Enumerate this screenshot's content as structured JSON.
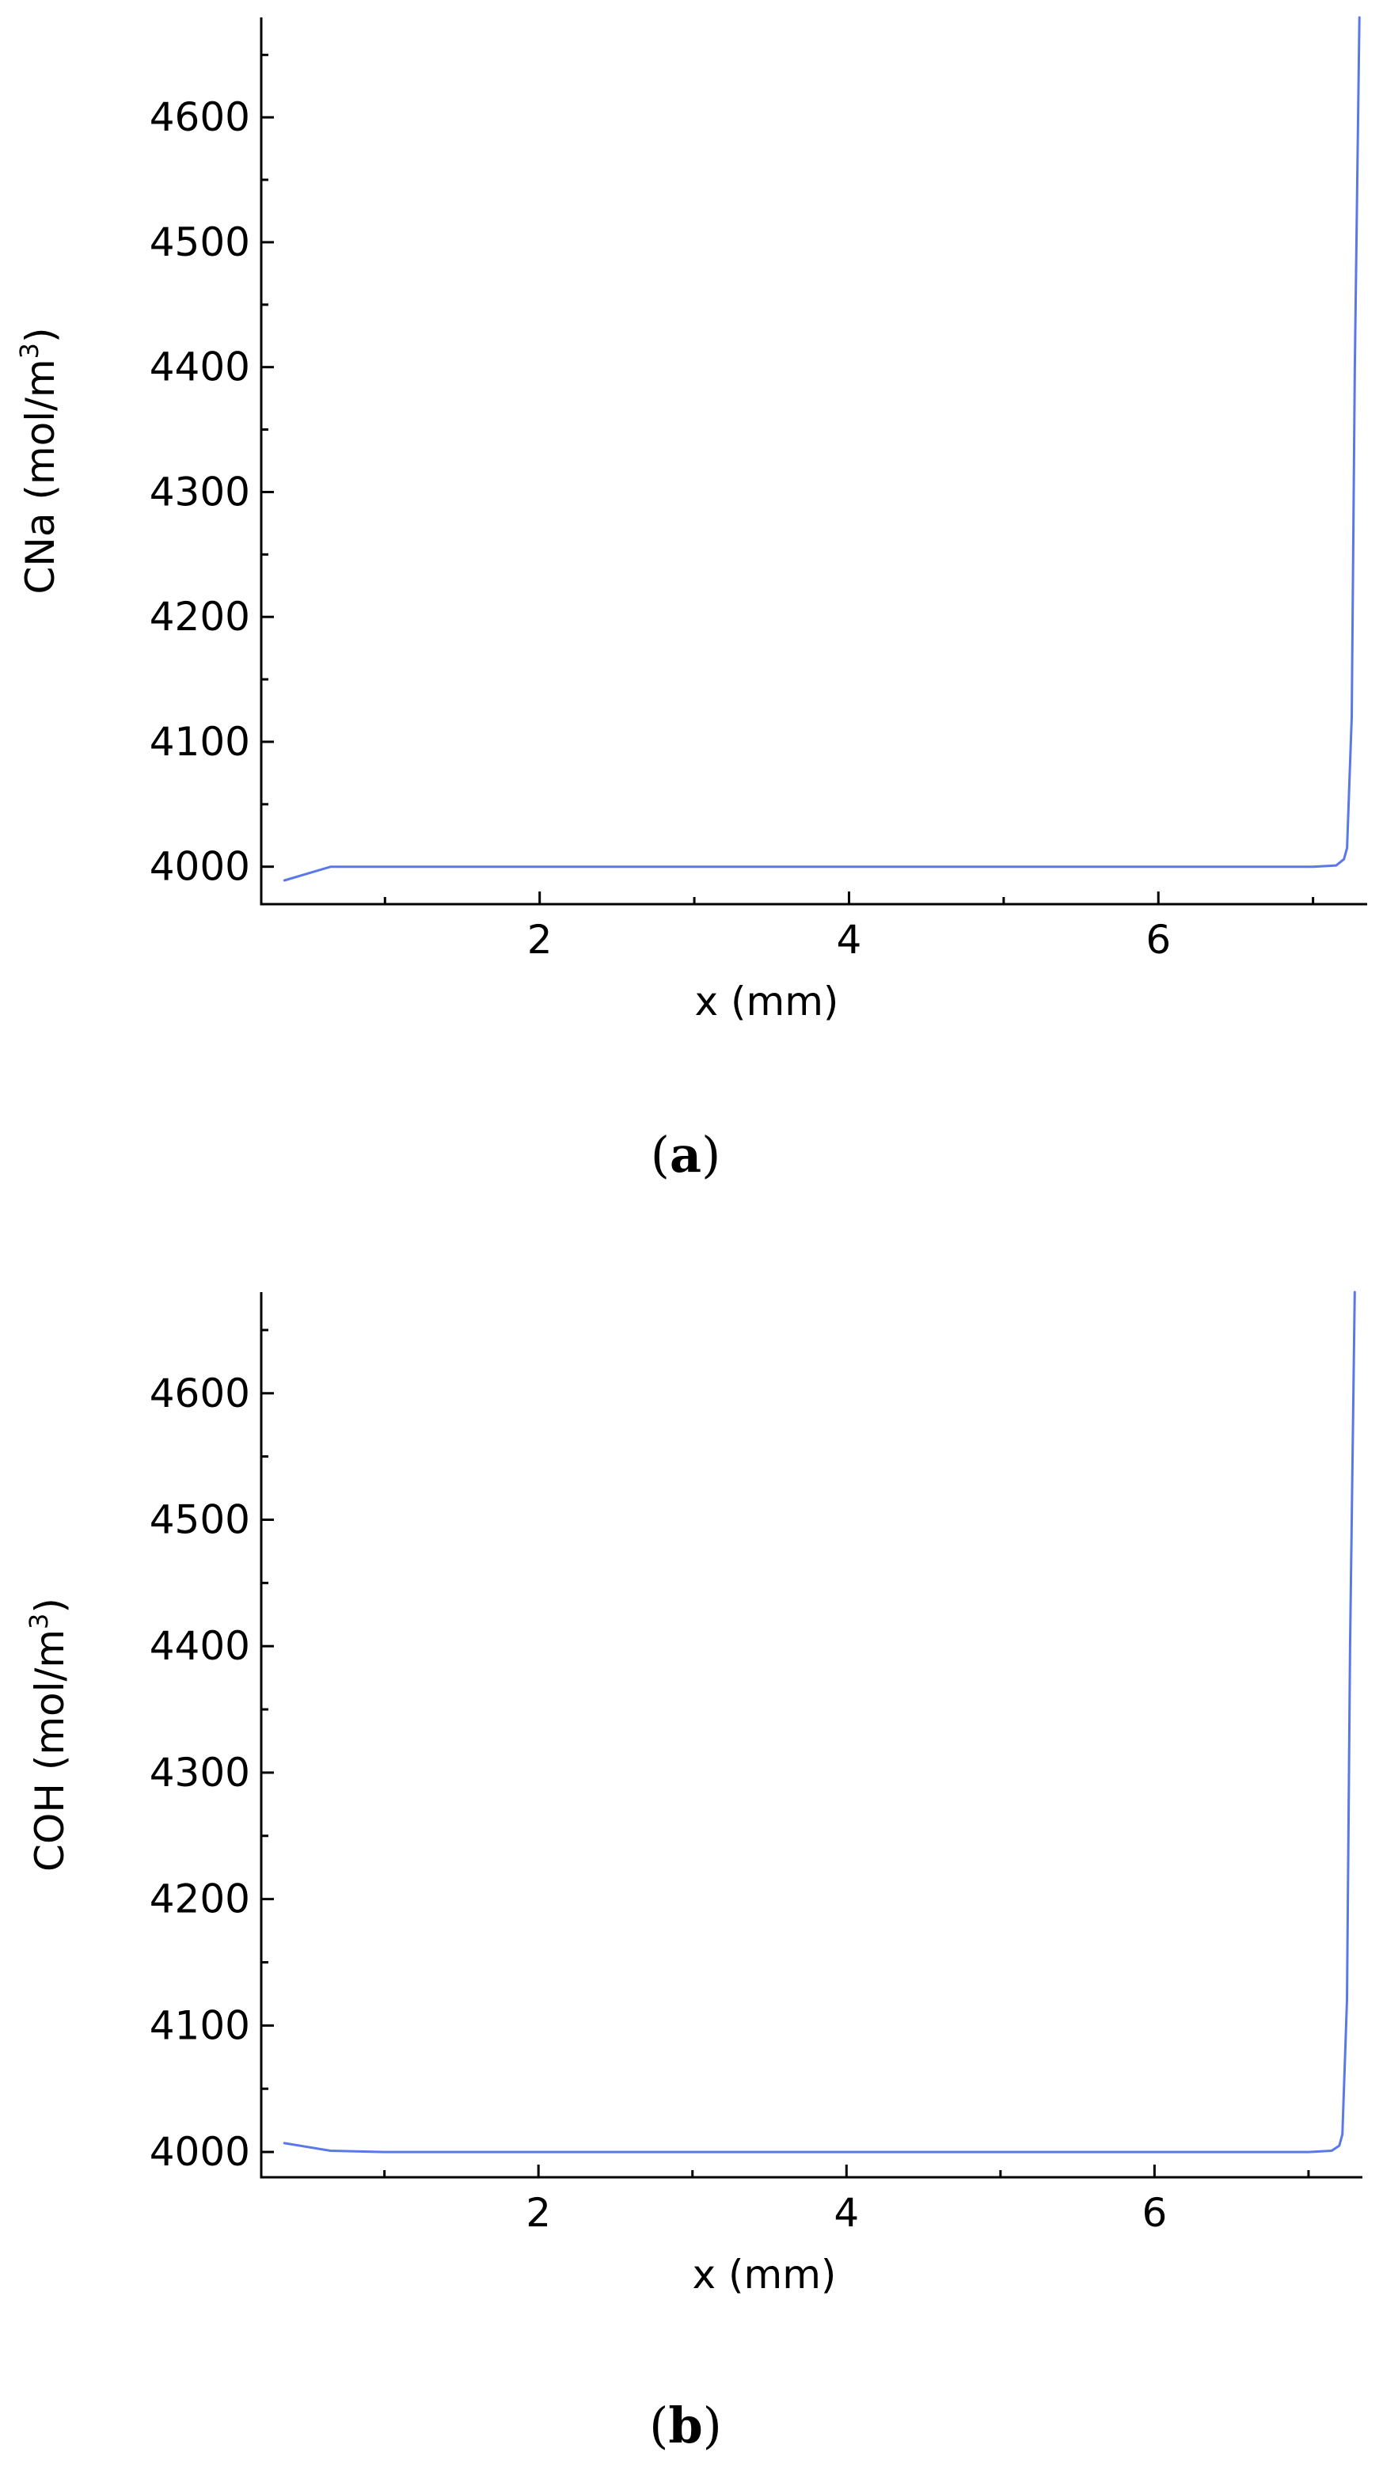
{
  "colors": {
    "series": "#5a78e8"
  },
  "chart_data": [
    {
      "type": "line",
      "panel_label": "a",
      "xlabel": "x (mm)",
      "ylabel": "CNa (mol/m",
      "ylabel_sup": "3",
      "ylabel_close": ")",
      "xlim": [
        0.2,
        7.35
      ],
      "ylim": [
        3970,
        4680
      ],
      "xticks": [
        2,
        4,
        6
      ],
      "xtick_labels": [
        "2",
        "4",
        "6"
      ],
      "yticks": [
        4000,
        4100,
        4200,
        4300,
        4400,
        4500,
        4600
      ],
      "ytick_labels": [
        "4000",
        "4100",
        "4200",
        "4300",
        "4400",
        "4500",
        "4600"
      ],
      "series": [
        {
          "x": [
            0.35,
            0.65,
            1.0,
            2.0,
            3.0,
            4.0,
            5.0,
            6.0,
            7.0,
            7.15,
            7.2,
            7.22,
            7.25,
            7.27,
            7.3
          ],
          "y": [
            3989,
            4000,
            4000,
            4000,
            4000,
            4000,
            4000,
            4000,
            4000,
            4001,
            4006,
            4015,
            4120,
            4400,
            4680
          ]
        }
      ]
    },
    {
      "type": "line",
      "panel_label": "b",
      "xlabel": "x (mm)",
      "ylabel": "COH (mol/m",
      "ylabel_sup": "3",
      "ylabel_close": ")",
      "xlim": [
        0.2,
        7.35
      ],
      "ylim": [
        3980,
        4680
      ],
      "xticks": [
        2,
        4,
        6
      ],
      "xtick_labels": [
        "2",
        "4",
        "6"
      ],
      "yticks": [
        4000,
        4100,
        4200,
        4300,
        4400,
        4500,
        4600
      ],
      "ytick_labels": [
        "4000",
        "4100",
        "4200",
        "4300",
        "4400",
        "4500",
        "4600"
      ],
      "series": [
        {
          "x": [
            0.35,
            0.65,
            1.0,
            2.0,
            3.0,
            4.0,
            5.0,
            6.0,
            7.0,
            7.15,
            7.2,
            7.22,
            7.25,
            7.27,
            7.3
          ],
          "y": [
            4007,
            4001,
            4000,
            4000,
            4000,
            4000,
            4000,
            4000,
            4000,
            4001,
            4005,
            4014,
            4120,
            4400,
            4680
          ]
        }
      ]
    }
  ]
}
